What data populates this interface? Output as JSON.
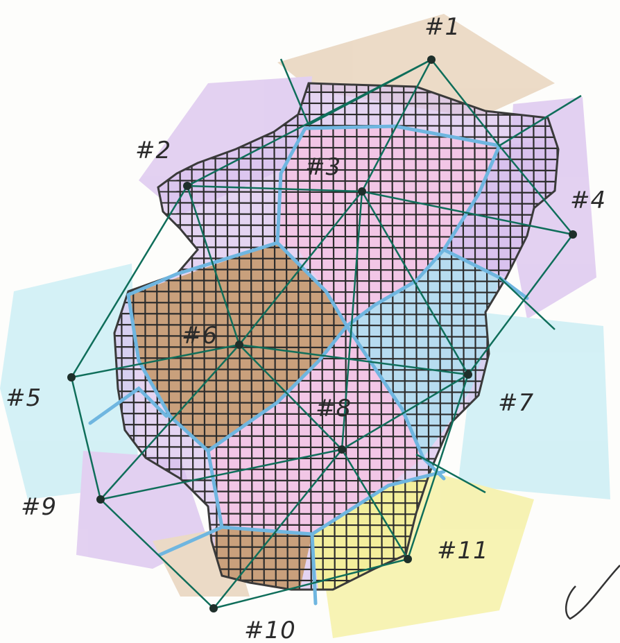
{
  "diagram": {
    "colors": {
      "grid": "#2c2c2c",
      "outline": "#3a3a3a",
      "triangulation": "#0f6e5a",
      "voronoi": "#6fb6e0",
      "pink": "#f2c6e6",
      "brown": "#c9a07c",
      "blue": "#b7dcf0",
      "purple": "#d9c2ee",
      "yellow": "#f4ef9c",
      "tan": "#e6cfb5",
      "cyan": "#c6ecf4"
    },
    "sites": [
      {
        "id": "1",
        "label": "#1"
      },
      {
        "id": "2",
        "label": "#2"
      },
      {
        "id": "3",
        "label": "#3"
      },
      {
        "id": "4",
        "label": "#4"
      },
      {
        "id": "5",
        "label": "#5"
      },
      {
        "id": "6",
        "label": "#6"
      },
      {
        "id": "7",
        "label": "#7"
      },
      {
        "id": "8",
        "label": "#8"
      },
      {
        "id": "9",
        "label": "#9"
      },
      {
        "id": "10",
        "label": "#10"
      },
      {
        "id": "11",
        "label": "#11"
      }
    ],
    "check_mark_icon": "check-mark-icon"
  }
}
